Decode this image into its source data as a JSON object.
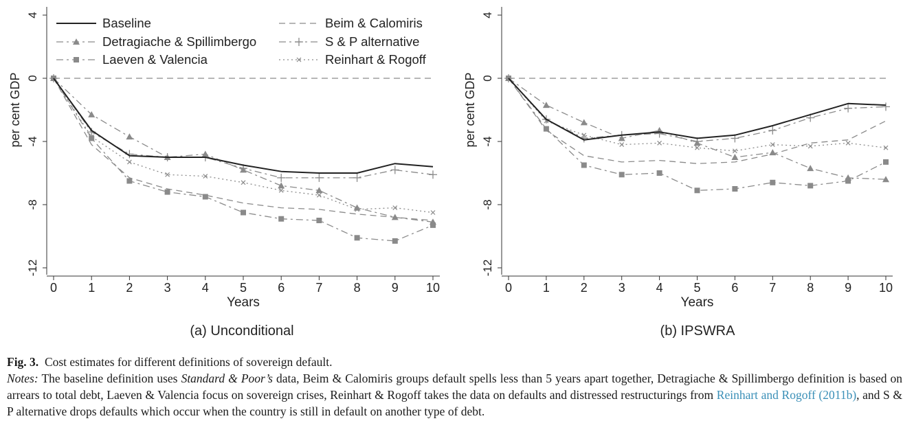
{
  "chart_data": [
    {
      "type": "line",
      "panel_title": "(a) Unconditional",
      "xlabel": "Years",
      "ylabel": "per cent GDP",
      "xlim": [
        0,
        10
      ],
      "ylim": [
        -12,
        4
      ],
      "x_ticks": [
        0,
        1,
        2,
        3,
        4,
        5,
        6,
        7,
        8,
        9,
        10
      ],
      "y_ticks": [
        4,
        0,
        -4,
        -8,
        -12
      ],
      "x": [
        0,
        1,
        2,
        3,
        4,
        5,
        6,
        7,
        8,
        9,
        10
      ],
      "zero_reference_line": true,
      "series": [
        {
          "name": "Baseline",
          "style": "solid",
          "marker": "none",
          "values": [
            0,
            -3.3,
            -4.9,
            -5.0,
            -5.0,
            -5.5,
            -5.9,
            -6.0,
            -6.0,
            -5.4,
            -5.6
          ]
        },
        {
          "name": "Beim & Calomiris",
          "style": "dash",
          "marker": "none",
          "values": [
            0,
            -4.2,
            -6.3,
            -7.0,
            -7.4,
            -7.9,
            -8.2,
            -8.3,
            -8.6,
            -8.8,
            -9.0
          ]
        },
        {
          "name": "Detragiache & Spillimbergo",
          "style": "dashdot",
          "marker": "triangle",
          "values": [
            0,
            -2.3,
            -3.7,
            -5.0,
            -4.8,
            -5.8,
            -6.8,
            -7.1,
            -8.2,
            -8.8,
            -9.1
          ]
        },
        {
          "name": "S & P alternative",
          "style": "dashdot",
          "marker": "plus",
          "values": [
            0,
            -3.4,
            -4.8,
            -5.0,
            -5.0,
            -5.7,
            -6.3,
            -6.3,
            -6.3,
            -5.8,
            -6.1
          ]
        },
        {
          "name": "Laeven & Valencia",
          "style": "dashdot",
          "marker": "square",
          "values": [
            0,
            -3.8,
            -6.5,
            -7.2,
            -7.5,
            -8.5,
            -8.9,
            -9.0,
            -10.1,
            -10.3,
            -9.3
          ]
        },
        {
          "name": "Reinhart & Rogoff",
          "style": "dot",
          "marker": "x",
          "values": [
            0,
            -3.7,
            -5.3,
            -6.1,
            -6.2,
            -6.6,
            -7.1,
            -7.4,
            -8.3,
            -8.2,
            -8.5
          ]
        }
      ]
    },
    {
      "type": "line",
      "panel_title": "(b) IPSWRA",
      "xlabel": "Years",
      "ylabel": "per cent GDP",
      "xlim": [
        0,
        10
      ],
      "ylim": [
        -12,
        4
      ],
      "x_ticks": [
        0,
        1,
        2,
        3,
        4,
        5,
        6,
        7,
        8,
        9,
        10
      ],
      "y_ticks": [
        4,
        0,
        -4,
        -8,
        -12
      ],
      "x": [
        0,
        1,
        2,
        3,
        4,
        5,
        6,
        7,
        8,
        9,
        10
      ],
      "zero_reference_line": true,
      "series": [
        {
          "name": "Baseline",
          "style": "solid",
          "marker": "none",
          "values": [
            0,
            -2.6,
            -3.9,
            -3.6,
            -3.4,
            -3.8,
            -3.6,
            -3.0,
            -2.3,
            -1.6,
            -1.7
          ]
        },
        {
          "name": "Beim & Calomiris",
          "style": "dash",
          "marker": "none",
          "values": [
            0,
            -3.3,
            -4.9,
            -5.3,
            -5.2,
            -5.4,
            -5.3,
            -4.8,
            -4.1,
            -3.9,
            -2.7
          ]
        },
        {
          "name": "Detragiache & Spillimbergo",
          "style": "dashdot",
          "marker": "triangle",
          "values": [
            0,
            -1.7,
            -2.8,
            -3.8,
            -3.3,
            -4.1,
            -5.0,
            -4.7,
            -5.7,
            -6.3,
            -6.4
          ]
        },
        {
          "name": "S & P alternative",
          "style": "dashdot",
          "marker": "plus",
          "values": [
            0,
            -2.6,
            -3.8,
            -3.6,
            -3.5,
            -4.0,
            -3.8,
            -3.3,
            -2.5,
            -1.9,
            -1.8
          ]
        },
        {
          "name": "Laeven & Valencia",
          "style": "dashdot",
          "marker": "square",
          "values": [
            0,
            -3.2,
            -5.5,
            -6.1,
            -6.0,
            -7.1,
            -7.0,
            -6.6,
            -6.8,
            -6.5,
            -5.3
          ]
        },
        {
          "name": "Reinhart & Rogoff",
          "style": "dot",
          "marker": "x",
          "values": [
            0,
            -2.7,
            -3.6,
            -4.2,
            -4.1,
            -4.4,
            -4.6,
            -4.2,
            -4.3,
            -4.1,
            -4.4
          ]
        }
      ]
    }
  ],
  "legend": {
    "placement": "top-left of panel (a)",
    "entries": [
      "Baseline",
      "Beim & Calomiris",
      "Detragiache & Spillimbergo",
      "S & P alternative",
      "Laeven & Valencia",
      "Reinhart & Rogoff"
    ]
  },
  "colors": {
    "baseline": "#222222",
    "other_series": "#8a8a8a",
    "reference_line": "#8a8a8a",
    "citation_link": "#3a8fb7"
  },
  "caption": {
    "fig_label": "Fig. 3.",
    "fig_title": "Cost estimates for different definitions of sovereign default.",
    "notes_label": "Notes:",
    "notes_part1": "The baseline definition uses",
    "notes_italic": "Standard & Poor’s",
    "notes_part2": "data, Beim & Calomiris groups default spells less than 5 years apart together, Detragiache & Spillimbergo definition is based on arrears to total debt, Laeven & Valencia focus on sovereign crises, Reinhart & Rogoff takes the data on defaults and distressed restructurings from",
    "citation": "Reinhart and Rogoff (2011b)",
    "notes_part3": ", and S & P alternative drops defaults which occur when the country is still in default on another type of debt."
  }
}
